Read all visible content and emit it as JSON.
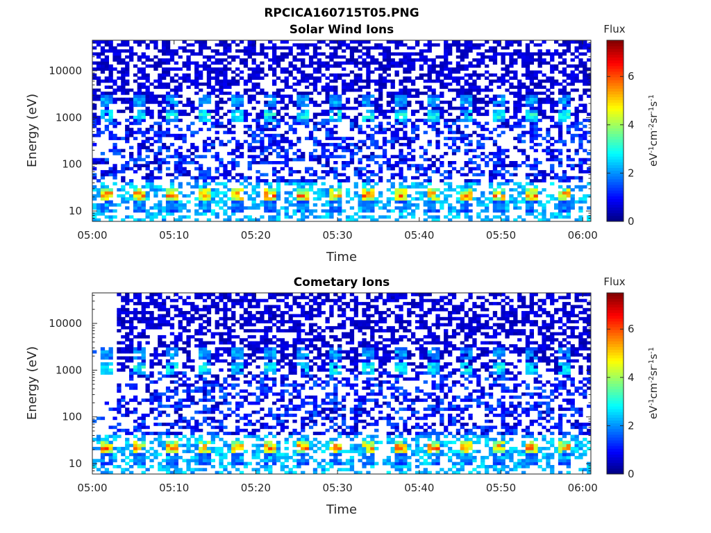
{
  "figure_title": "RPCICA160715T05.PNG",
  "chart_data": [
    {
      "type": "heatmap",
      "title": "Solar Wind Ions",
      "xlabel": "Time",
      "ylabel": "Energy (eV)",
      "y_scale": "log",
      "xlim": [
        "05:00",
        "06:01"
      ],
      "ylim": [
        6,
        45000
      ],
      "x_tick_labels": [
        "05:00",
        "05:10",
        "05:20",
        "05:30",
        "05:40",
        "05:50",
        "06:00"
      ],
      "y_tick_values": [
        10,
        100,
        1000,
        10000
      ],
      "y_tick_labels": [
        "10",
        "100",
        "1000",
        "10000"
      ],
      "colorbar": {
        "label": "Flux",
        "unit": "eV-1 cm-2 sr-1 s-1",
        "min": 0,
        "max": 7.5,
        "ticks": [
          "0",
          "2",
          "4",
          "6"
        ],
        "colormap": "jet"
      },
      "data_start": "05:00",
      "patterns": {
        "burst_period_min": 4,
        "bands": [
          {
            "energy_eV": 22,
            "flux": 5.5
          },
          {
            "energy_eV": 1100,
            "flux": 3.0
          },
          {
            "energy_eV": 2300,
            "flux": 2.3
          },
          {
            "energy_eV": 13,
            "flux": 2.0
          }
        ],
        "background_flux": 0.3,
        "background_energy_range_eV": [
          40,
          45000
        ]
      }
    },
    {
      "type": "heatmap",
      "title": "Cometary Ions",
      "xlabel": "Time",
      "ylabel": "Energy (eV)",
      "y_scale": "log",
      "xlim": [
        "05:00",
        "06:01"
      ],
      "ylim": [
        6,
        45000
      ],
      "x_tick_labels": [
        "05:00",
        "05:10",
        "05:20",
        "05:30",
        "05:40",
        "05:50",
        "06:00"
      ],
      "y_tick_values": [
        10,
        100,
        1000,
        10000
      ],
      "y_tick_labels": [
        "10",
        "100",
        "1000",
        "10000"
      ],
      "colorbar": {
        "label": "Flux",
        "unit": "eV-1 cm-2 sr-1 s-1",
        "min": 0,
        "max": 7.5,
        "ticks": [
          "0",
          "2",
          "4",
          "6"
        ],
        "colormap": "jet"
      },
      "data_start": "05:00",
      "high_energy_start": "05:03",
      "patterns": {
        "burst_period_min": 4,
        "bands": [
          {
            "energy_eV": 22,
            "flux": 5.5
          },
          {
            "energy_eV": 1100,
            "flux": 3.0
          },
          {
            "energy_eV": 2300,
            "flux": 2.3
          },
          {
            "energy_eV": 13,
            "flux": 2.0
          }
        ],
        "background_flux": 0.3,
        "background_energy_range_eV": [
          40,
          45000
        ]
      }
    }
  ]
}
